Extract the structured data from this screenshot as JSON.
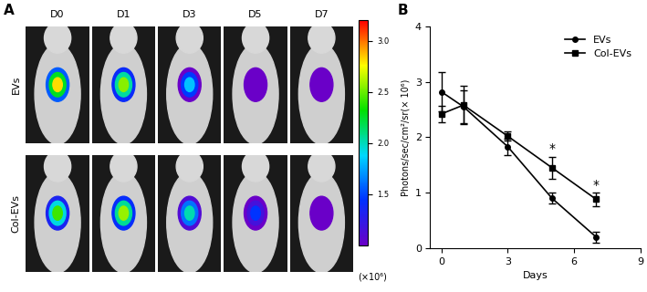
{
  "chart_data": [
    {
      "type": "image_grid",
      "panel_label": "A",
      "columns": [
        "D0",
        "D1",
        "D3",
        "D5",
        "D7"
      ],
      "rows": [
        "EVs",
        "Col-EVs"
      ],
      "colorbar": {
        "range": [
          1.0,
          3.2
        ],
        "ticks": [
          1.5,
          2.0,
          2.5,
          3.0
        ],
        "label": "(×10⁶)"
      }
    },
    {
      "type": "line",
      "panel_label": "B",
      "xlabel": "Days",
      "ylabel": "Photons/sec/cm²/sr(× 10⁶)",
      "x": [
        0,
        1,
        3,
        5,
        7
      ],
      "series": [
        {
          "name": "EVs",
          "color": "#000000",
          "marker": "circle",
          "values": [
            2.82,
            2.55,
            1.83,
            0.9,
            0.2
          ],
          "error": [
            0.35,
            0.3,
            0.15,
            0.1,
            0.1
          ]
        },
        {
          "name": "Col-EVs",
          "color": "#000000",
          "marker": "square",
          "values": [
            2.42,
            2.58,
            2.02,
            1.45,
            0.88
          ],
          "error": [
            0.15,
            0.35,
            0.08,
            0.2,
            0.12
          ]
        }
      ],
      "xlim": [
        -0.5,
        9
      ],
      "ylim": [
        0,
        4
      ],
      "xticks": [
        0,
        3,
        6,
        9
      ],
      "yticks": [
        0,
        1,
        2,
        3,
        4
      ],
      "legend": "upper right",
      "annotations": [
        {
          "x": 5,
          "text": "*"
        },
        {
          "x": 7,
          "text": "*"
        }
      ]
    }
  ]
}
